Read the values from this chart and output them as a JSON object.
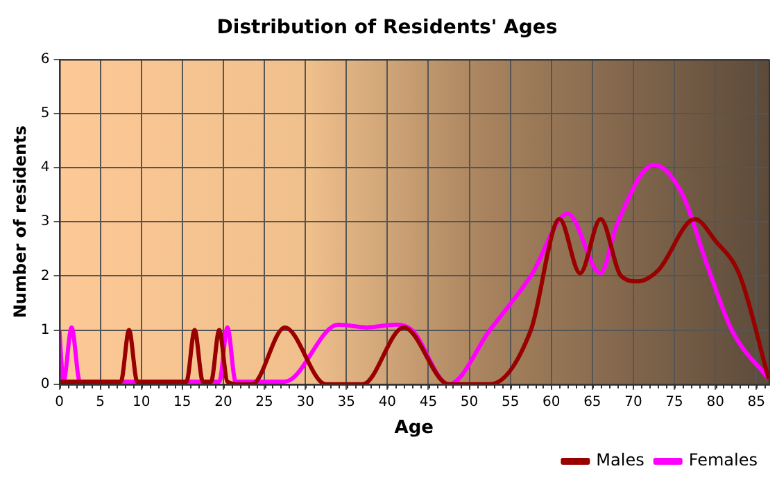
{
  "chart_data": {
    "type": "line",
    "title": "Distribution of Residents' Ages",
    "xlabel": "Age",
    "ylabel": "Number of residents",
    "xlim": [
      0,
      86.5
    ],
    "xticks": [
      0,
      5,
      10,
      15,
      20,
      25,
      30,
      35,
      40,
      45,
      50,
      55,
      60,
      65,
      70,
      75,
      80,
      85
    ],
    "ylim": [
      0,
      6
    ],
    "yticks": [
      0,
      1,
      2,
      3,
      4,
      5,
      6
    ],
    "grid": true,
    "legend": "bottom right",
    "marker": "none",
    "line_style": "solid",
    "series": [
      {
        "name": "Males",
        "color": "#990000",
        "x": [
          0,
          7.5,
          8.5,
          9.5,
          15.5,
          16.5,
          17.5,
          18.5,
          19.5,
          20.5,
          22,
          23.5,
          27.5,
          32.5,
          37,
          42,
          47.5,
          52.5,
          57.5,
          61,
          63.5,
          66,
          68.5,
          70.5,
          73,
          77.5,
          80,
          83,
          86.5
        ],
        "values": [
          0.05,
          0.05,
          1,
          0.05,
          0.05,
          1,
          0.05,
          0.05,
          1,
          0.05,
          0,
          0,
          1.05,
          0,
          0,
          1.05,
          0,
          0,
          1,
          3.05,
          2.05,
          3.05,
          2,
          1.9,
          2.1,
          3.05,
          2.65,
          2,
          0.1
        ]
      },
      {
        "name": "Females",
        "color": "#ff00ff",
        "x": [
          0,
          0.5,
          1.5,
          2.5,
          19.5,
          20.5,
          21.5,
          27.5,
          34,
          37.5,
          41,
          43,
          47.5,
          52.5,
          57.5,
          62,
          66,
          68,
          72.5,
          76,
          79,
          82,
          86.5
        ],
        "values": [
          1,
          0.05,
          1.05,
          0.05,
          0.05,
          1.05,
          0.05,
          0.05,
          1.1,
          1.05,
          1.1,
          1,
          0,
          1,
          2,
          3.15,
          2.05,
          2.95,
          4.05,
          3.5,
          2.2,
          1,
          0.1
        ]
      }
    ]
  }
}
